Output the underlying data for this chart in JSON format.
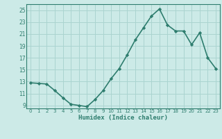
{
  "x": [
    0,
    1,
    2,
    3,
    4,
    5,
    6,
    7,
    8,
    9,
    10,
    11,
    12,
    13,
    14,
    15,
    16,
    17,
    18,
    19,
    20,
    21,
    22,
    23
  ],
  "y": [
    12.8,
    12.7,
    12.6,
    11.5,
    10.3,
    9.2,
    9.0,
    8.8,
    10.0,
    11.5,
    13.5,
    15.2,
    17.5,
    20.0,
    22.0,
    24.0,
    25.2,
    22.5,
    21.5,
    21.5,
    19.2,
    21.2,
    17.0,
    15.2
  ],
  "xlabel": "Humidex (Indice chaleur)",
  "line_color": "#2e7d6e",
  "marker": "D",
  "marker_size": 2.2,
  "line_width": 1.2,
  "bg_color": "#cceae7",
  "grid_color": "#aad4d0",
  "tick_color": "#2e7d6e",
  "xlim": [
    -0.5,
    23.5
  ],
  "ylim": [
    8.5,
    26.0
  ],
  "yticks": [
    9,
    11,
    13,
    15,
    17,
    19,
    21,
    23,
    25
  ],
  "xticks": [
    0,
    1,
    2,
    3,
    4,
    5,
    6,
    7,
    8,
    9,
    10,
    11,
    12,
    13,
    14,
    15,
    16,
    17,
    18,
    19,
    20,
    21,
    22,
    23
  ],
  "xtick_labels": [
    "0",
    "1",
    "2",
    "3",
    "4",
    "5",
    "6",
    "7",
    "8",
    "9",
    "10",
    "11",
    "12",
    "13",
    "14",
    "15",
    "16",
    "17",
    "18",
    "19",
    "20",
    "21",
    "22",
    "23"
  ],
  "ytick_labels": [
    "9",
    "11",
    "13",
    "15",
    "17",
    "19",
    "21",
    "23",
    "25"
  ]
}
